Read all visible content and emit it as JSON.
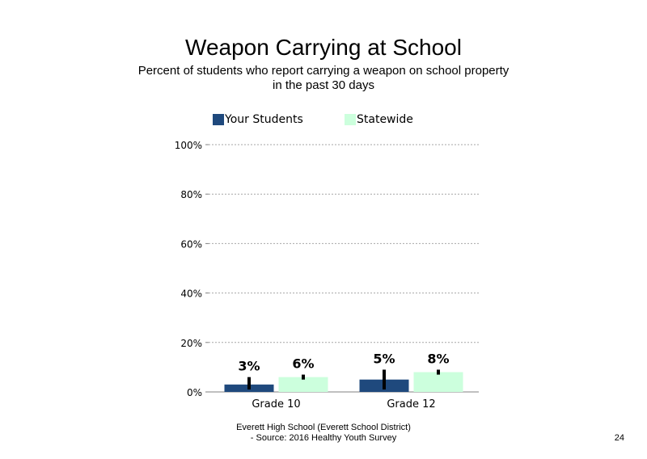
{
  "slide": {
    "page_number": "24"
  },
  "footer": {
    "line1": "Everett High School (Everett School District)",
    "line2": "- Source: 2016 Healthy Youth Survey"
  },
  "colors": {
    "your_students": "#1f497d",
    "statewide": "#ccffdd",
    "error_bar": "#000000",
    "grid": "#a6a6a6"
  },
  "chart_data": {
    "type": "bar",
    "title": "Weapon Carrying at School",
    "subtitle_lines": [
      "Percent of students who report carrying a weapon on school property",
      "in the past 30 days"
    ],
    "categories": [
      "Grade 10",
      "Grade 12"
    ],
    "series": [
      {
        "name": "Your Students",
        "color": "#1f497d",
        "values": [
          3,
          5
        ],
        "labels": [
          "3%",
          "5%"
        ],
        "error_low": [
          1,
          1
        ],
        "error_high": [
          6,
          9
        ]
      },
      {
        "name": "Statewide",
        "color": "#ccffdd",
        "values": [
          6,
          8
        ],
        "labels": [
          "6%",
          "8%"
        ],
        "error_low": [
          5,
          7
        ],
        "error_high": [
          7,
          9
        ]
      }
    ],
    "y_ticks": [
      0,
      20,
      40,
      60,
      80,
      100
    ],
    "y_tick_labels": [
      "0%",
      "20%",
      "40%",
      "60%",
      "80%",
      "100%"
    ],
    "ylim": [
      0,
      100
    ],
    "grid": true,
    "legend": "top"
  }
}
